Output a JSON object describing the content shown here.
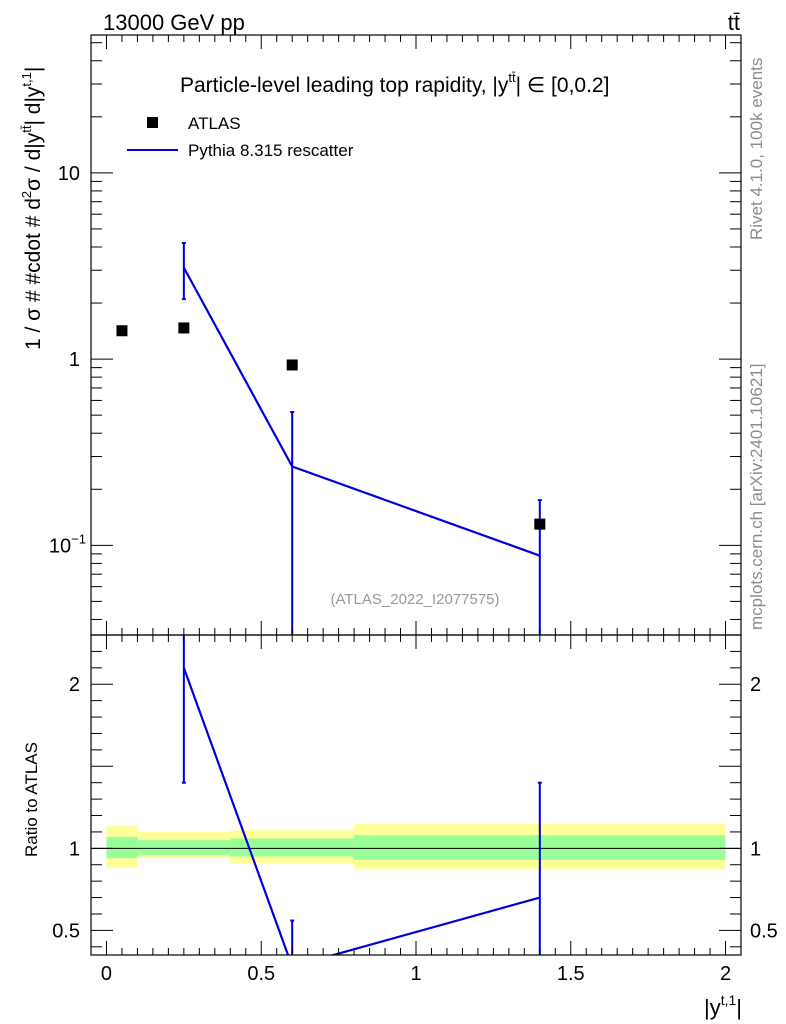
{
  "header": {
    "left": "13000 GeV pp",
    "right": "tt̄"
  },
  "side_text": {
    "top": "Rivet 4.1.0,  100k events",
    "bottom": "mcplots.cern.ch [arXiv:2401.10621]"
  },
  "chart_data": {
    "type": "line",
    "title_main": "Particle-level leading top rapidity, |y",
    "title_sup": "tt̄",
    "title_tail": "| ∈ [0,0.2]",
    "ylabel": "1 / σ # #cdot # d²σ / d|y^tt̄| d|y^t,1|",
    "ylabel_parts": {
      "a": "1 / σ # #cdot # d",
      "sup2": "2",
      "b": "σ / d|y",
      "sup_tt": "tt̄",
      "c": "| d|y",
      "sup_t1": "t,1",
      "d": "|"
    },
    "ratio_ylabel": "Ratio to ATLAS",
    "xlabel": "|y",
    "xlabel_sup": "t,1",
    "xlabel_tail": "|",
    "watermark": "(ATLAS_2022_I2077575)",
    "xlim": [
      -0.05,
      2.05
    ],
    "ylim_main": [
      0.033,
      55
    ],
    "ylim_ratio": [
      0.35,
      2.3
    ],
    "main_ytick_labels": [
      {
        "value": 10,
        "base": "10",
        "exp": ""
      },
      {
        "value": 1,
        "base": "1",
        "exp": ""
      },
      {
        "value": 0.1,
        "base": "10",
        "exp": "−1"
      }
    ],
    "ratio_ytick_labels": [
      {
        "value": 2,
        "label": "2"
      },
      {
        "value": 1,
        "label": "1"
      },
      {
        "value": 0.5,
        "label": "0.5"
      }
    ],
    "xtick_labels": [
      {
        "value": 0,
        "label": "0"
      },
      {
        "value": 0.5,
        "label": "0.5"
      },
      {
        "value": 1,
        "label": "1"
      },
      {
        "value": 1.5,
        "label": "1.5"
      },
      {
        "value": 2,
        "label": "2"
      }
    ],
    "legend": [
      {
        "label": "ATLAS",
        "kind": "marker",
        "color": "#000000"
      },
      {
        "label": "Pythia 8.315 rescatter",
        "kind": "line",
        "color": "#0000dd"
      }
    ],
    "data": {
      "name": "ATLAS",
      "x": [
        0.05,
        0.25,
        0.6,
        1.4
      ],
      "y": [
        1.42,
        1.47,
        0.93,
        0.13
      ]
    },
    "mc": {
      "name": "Pythia 8.315 rescatter",
      "color": "#0000dd",
      "x": [
        0.25,
        0.6,
        1.4
      ],
      "y": [
        3.1,
        0.265,
        0.088
      ],
      "err_low": [
        2.1,
        0.0001,
        0.0001
      ],
      "err_high": [
        4.2,
        0.52,
        0.175
      ]
    },
    "ratio": {
      "x": [
        0.25,
        0.6,
        1.4
      ],
      "y": [
        2.1,
        0.28,
        0.7
      ],
      "err_low": [
        1.4,
        0.0001,
        0.0001
      ],
      "err_high": [
        3.0,
        0.56,
        1.4
      ]
    },
    "bands": [
      {
        "x0": 0.0,
        "x1": 0.1,
        "inner": [
          0.94,
          1.07
        ],
        "outer": [
          0.88,
          1.14
        ]
      },
      {
        "x0": 0.1,
        "x1": 0.4,
        "inner": [
          0.96,
          1.05
        ],
        "outer": [
          0.94,
          1.1
        ]
      },
      {
        "x0": 0.4,
        "x1": 0.8,
        "inner": [
          0.95,
          1.06
        ],
        "outer": [
          0.91,
          1.11
        ]
      },
      {
        "x0": 0.8,
        "x1": 2.0,
        "inner": [
          0.93,
          1.08
        ],
        "outer": [
          0.87,
          1.15
        ]
      }
    ],
    "band_colors": {
      "inner": "#99ff99",
      "outer": "#ffff99"
    }
  }
}
